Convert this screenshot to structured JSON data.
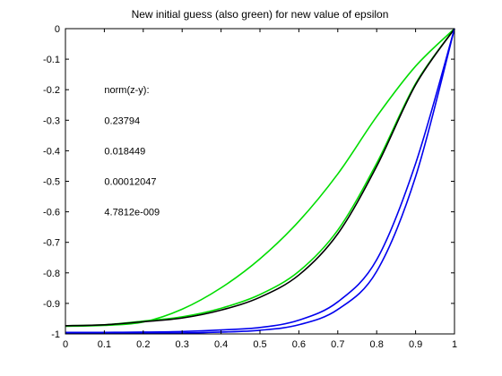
{
  "chart_data": {
    "type": "line",
    "title": "New initial guess (also green) for new value of epsilon",
    "xlabel": "",
    "ylabel": "",
    "xlim": [
      0,
      1
    ],
    "ylim": [
      -1,
      0
    ],
    "xticks": [
      "0",
      "0.1",
      "0.2",
      "0.3",
      "0.4",
      "0.5",
      "0.6",
      "0.7",
      "0.8",
      "0.9",
      "1"
    ],
    "yticks": [
      "0",
      "-0.1",
      "-0.2",
      "-0.3",
      "-0.4",
      "-0.5",
      "-0.6",
      "-0.7",
      "-0.8",
      "-0.9",
      "-1"
    ],
    "grid": false,
    "annotations": [
      "norm(z-y):",
      "0.23794",
      "0.018449",
      "0.00012047",
      "4.7812e-009"
    ],
    "series": [
      {
        "color": "#00dd00",
        "x": [
          0,
          0.1,
          0.2,
          0.3,
          0.4,
          0.5,
          0.6,
          0.7,
          0.8,
          0.9,
          1
        ],
        "y": [
          -0.975,
          -0.972,
          -0.961,
          -0.919,
          -0.849,
          -0.754,
          -0.631,
          -0.476,
          -0.288,
          -0.123,
          0
        ]
      },
      {
        "color": "#00dd00",
        "x": [
          0,
          0.1,
          0.2,
          0.3,
          0.4,
          0.5,
          0.6,
          0.7,
          0.8,
          0.9,
          1
        ],
        "y": [
          -0.973,
          -0.97,
          -0.958,
          -0.944,
          -0.916,
          -0.871,
          -0.795,
          -0.66,
          -0.441,
          -0.18,
          0
        ]
      },
      {
        "color": "#000000",
        "x": [
          0,
          0.1,
          0.2,
          0.3,
          0.4,
          0.5,
          0.6,
          0.7,
          0.8,
          0.9,
          1
        ],
        "y": [
          -0.973,
          -0.97,
          -0.96,
          -0.948,
          -0.922,
          -0.88,
          -0.807,
          -0.672,
          -0.451,
          -0.184,
          0
        ]
      },
      {
        "color": "#0000ee",
        "x": [
          0,
          0.1,
          0.2,
          0.3,
          0.4,
          0.5,
          0.6,
          0.7,
          0.8,
          0.9,
          1
        ],
        "y": [
          -0.995,
          -0.995,
          -0.994,
          -0.992,
          -0.987,
          -0.979,
          -0.955,
          -0.895,
          -0.757,
          -0.442,
          0
        ]
      },
      {
        "color": "#0000ee",
        "x": [
          0,
          0.1,
          0.2,
          0.3,
          0.4,
          0.5,
          0.6,
          0.7,
          0.8,
          0.9,
          1
        ],
        "y": [
          -0.998,
          -0.998,
          -0.998,
          -0.997,
          -0.994,
          -0.988,
          -0.97,
          -0.92,
          -0.795,
          -0.485,
          0
        ]
      }
    ]
  }
}
